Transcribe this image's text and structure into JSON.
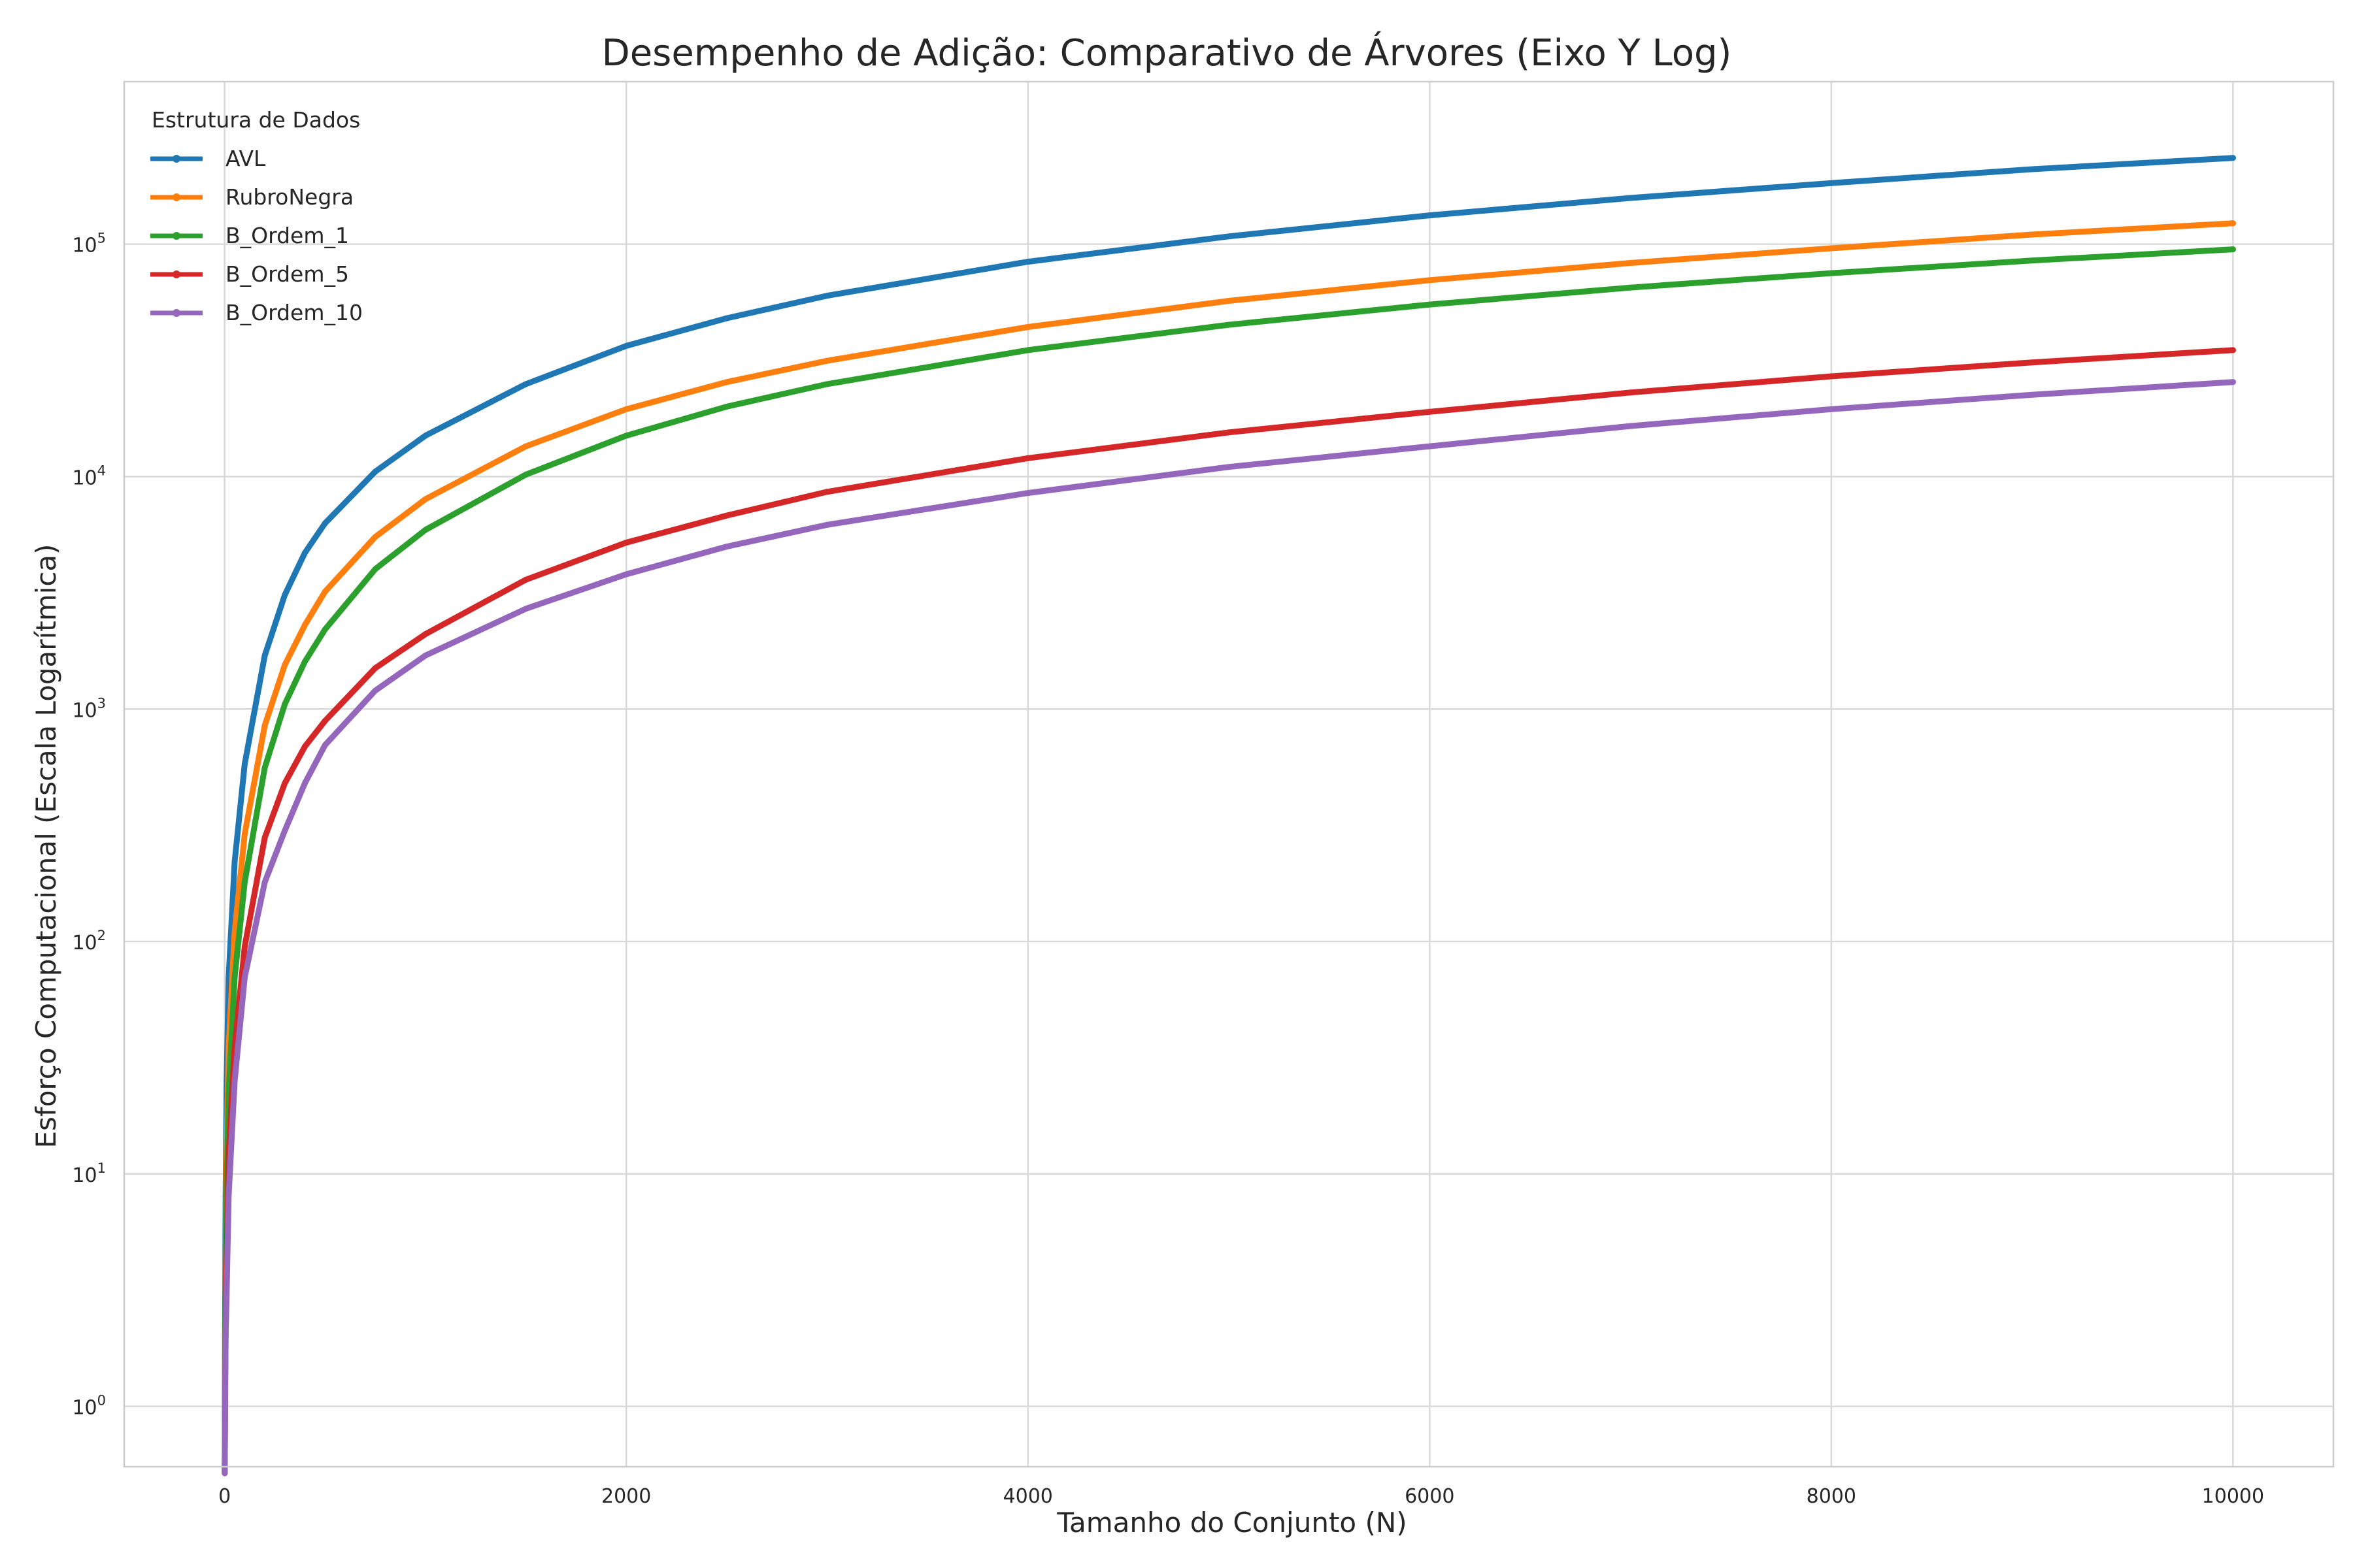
{
  "chart_data": {
    "type": "line",
    "title": "Desempenho de Adição: Comparativo de Árvores (Eixo Y Log)",
    "xlabel": "Tamanho do Conjunto (N)",
    "ylabel": "Esforço Computacional (Escala Logarítmica)",
    "xlim": [
      -500,
      10500
    ],
    "ylim": [
      0.55,
      500000
    ],
    "yscale": "log",
    "xticks": [
      0,
      2000,
      4000,
      6000,
      8000,
      10000
    ],
    "yticks": [
      1,
      10,
      100,
      1000,
      10000,
      100000
    ],
    "ytick_labels": [
      {
        "base": "10",
        "exp": "0"
      },
      {
        "base": "10",
        "exp": "1"
      },
      {
        "base": "10",
        "exp": "2"
      },
      {
        "base": "10",
        "exp": "3"
      },
      {
        "base": "10",
        "exp": "4"
      },
      {
        "base": "10",
        "exp": "5"
      }
    ],
    "grid": true,
    "legend": {
      "title": "Estrutura de Dados",
      "position": "top-left"
    },
    "x": [
      1,
      2,
      5,
      10,
      20,
      50,
      100,
      200,
      300,
      400,
      500,
      750,
      1000,
      1500,
      2000,
      2500,
      3000,
      4000,
      5000,
      6000,
      7000,
      8000,
      9000,
      10000
    ],
    "series": [
      {
        "name": "AVL",
        "color": "#1f77b4",
        "values": [
          0.5,
          2,
          8,
          25,
          70,
          220,
          580,
          1700,
          3100,
          4700,
          6300,
          10500,
          15000,
          25000,
          36500,
          48000,
          60000,
          84000,
          108000,
          133000,
          158000,
          183000,
          210000,
          235000
        ]
      },
      {
        "name": "RubroNegra",
        "color": "#ff7f0e",
        "values": [
          0.5,
          1,
          4,
          12,
          35,
          110,
          290,
          850,
          1550,
          2300,
          3200,
          5500,
          8000,
          13500,
          19500,
          25500,
          31500,
          44000,
          57000,
          70000,
          83000,
          96000,
          110000,
          123000
        ]
      },
      {
        "name": "B_Ordem_1",
        "color": "#2ca02c",
        "values": [
          0.5,
          1,
          3,
          8,
          22,
          70,
          180,
          560,
          1050,
          1600,
          2200,
          4000,
          5900,
          10200,
          15000,
          20000,
          25000,
          35000,
          45000,
          55000,
          65000,
          75000,
          85000,
          95000
        ]
      },
      {
        "name": "B_Ordem_5",
        "color": "#d62728",
        "values": [
          0.5,
          1,
          2,
          4,
          12,
          35,
          95,
          280,
          480,
          690,
          890,
          1500,
          2100,
          3600,
          5200,
          6800,
          8600,
          12000,
          15500,
          19000,
          23000,
          27000,
          31000,
          35000
        ]
      },
      {
        "name": "B_Ordem_10",
        "color": "#9467bd",
        "values": [
          0.5,
          1,
          2,
          3,
          8,
          25,
          70,
          180,
          300,
          480,
          700,
          1200,
          1700,
          2700,
          3800,
          5000,
          6200,
          8500,
          11000,
          13500,
          16500,
          19500,
          22500,
          25500
        ]
      }
    ]
  }
}
